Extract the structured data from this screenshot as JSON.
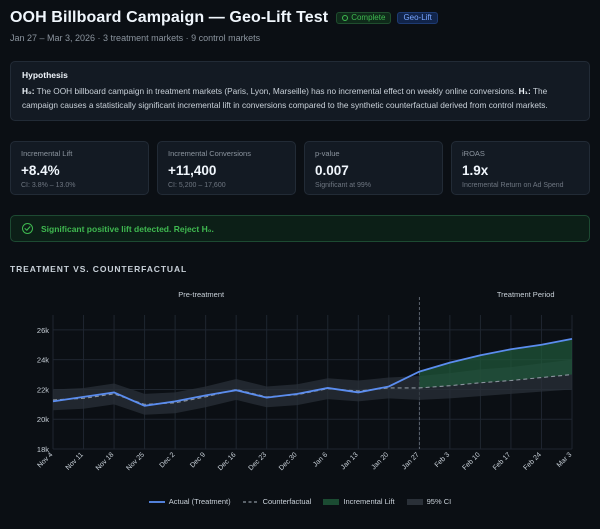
{
  "header": {
    "title": "OOH Billboard Campaign — Geo-Lift Test",
    "status_badge": "Complete",
    "type_badge": "Geo-Lift",
    "subtitle": "Jan 27 – Mar 3, 2026 · 3 treatment markets · 9 control markets"
  },
  "hypothesis": {
    "title": "Hypothesis",
    "h0_label": "H₀:",
    "h0_text": " The OOH billboard campaign in treatment markets (Paris, Lyon, Marseille) has no incremental effect on weekly online conversions. ",
    "h1_label": "H₁:",
    "h1_text": " The campaign causes a statistically significant incremental lift in conversions compared to the synthetic counterfactual derived from control markets."
  },
  "metrics": [
    {
      "label": "Incremental Lift",
      "value": "+8.4%",
      "sub": "CI: 3.8% – 13.0%"
    },
    {
      "label": "Incremental Conversions",
      "value": "+11,400",
      "sub": "CI: 5,200 – 17,600"
    },
    {
      "label": "p-value",
      "value": "0.007",
      "sub": "Significant at 99%"
    },
    {
      "label": "iROAS",
      "value": "1.9x",
      "sub": "Incremental Return on Ad Spend"
    }
  ],
  "alert": {
    "text": "Significant positive lift detected. Reject H₀."
  },
  "chart_section_title": "TREATMENT VS. COUNTERFACTUAL",
  "colors": {
    "actual": "#5b8def",
    "counterfactual": "#8b949e",
    "lift": "#1f5a3a",
    "ci": "#2a3038"
  },
  "chart_data": {
    "type": "line",
    "title": "TREATMENT VS. COUNTERFACTUAL",
    "categories": [
      "Nov 4",
      "Nov 11",
      "Nov 18",
      "Nov 25",
      "Dec 2",
      "Dec 9",
      "Dec 16",
      "Dec 23",
      "Dec 30",
      "Jan 6",
      "Jan 13",
      "Jan 20",
      "Jan 27",
      "Feb 3",
      "Feb 10",
      "Feb 17",
      "Feb 24",
      "Mar 3"
    ],
    "ylim": [
      18000,
      27000
    ],
    "yticks": [
      18000,
      20000,
      22000,
      24000,
      26000
    ],
    "ytick_labels": [
      "18k",
      "20k",
      "22k",
      "24k",
      "26k"
    ],
    "period_labels": {
      "pre": "Pre-treatment",
      "post": "Treatment Period"
    },
    "treatment_start": "Jan 27",
    "series": [
      {
        "name": "Actual (Treatment)",
        "values": [
          21200,
          21500,
          21800,
          20900,
          21200,
          21600,
          21950,
          21450,
          21700,
          22100,
          21800,
          22200,
          23200,
          23800,
          24300,
          24700,
          25000,
          25400
        ]
      },
      {
        "name": "Counterfactual",
        "values": [
          21300,
          21400,
          21700,
          21000,
          21100,
          21500,
          22000,
          21500,
          21650,
          22050,
          21900,
          22100,
          22100,
          22250,
          22450,
          22600,
          22800,
          23000
        ]
      }
    ],
    "ci": {
      "name": "95% CI",
      "lower": [
        20600,
        20700,
        21000,
        20300,
        20400,
        20800,
        21300,
        20800,
        20950,
        21350,
        21200,
        21400,
        21300,
        21400,
        21550,
        21700,
        21850,
        22000
      ],
      "upper": [
        22000,
        22100,
        22400,
        21700,
        21800,
        22200,
        22700,
        22200,
        22350,
        22750,
        22600,
        22800,
        22900,
        23100,
        23350,
        23500,
        23750,
        24000
      ]
    },
    "legend": [
      "Actual (Treatment)",
      "Counterfactual",
      "Incremental Lift",
      "95% CI"
    ]
  }
}
